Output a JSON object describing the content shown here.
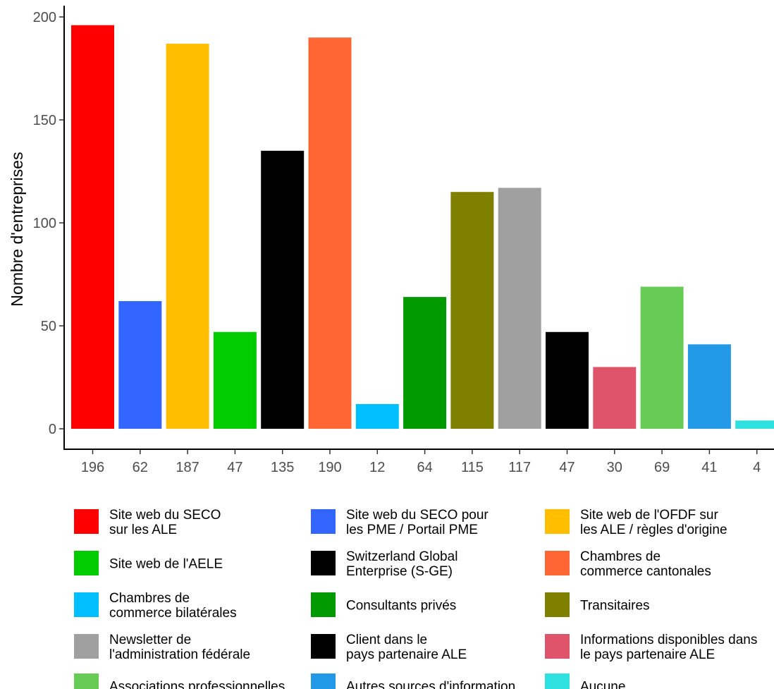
{
  "chart_data": {
    "type": "bar",
    "title": "",
    "xlabel": "",
    "ylabel": "Nombre d'entreprises",
    "ylim": [
      0,
      200
    ],
    "yticks": [
      0,
      50,
      100,
      150,
      200
    ],
    "grid": false,
    "legend_position": "bottom",
    "legend_columns": 3,
    "categories": [
      "196",
      "62",
      "187",
      "47",
      "135",
      "190",
      "12",
      "64",
      "115",
      "117",
      "47",
      "30",
      "69",
      "41",
      "4"
    ],
    "values": [
      196,
      62,
      187,
      47,
      135,
      190,
      12,
      64,
      115,
      117,
      47,
      30,
      69,
      41,
      4
    ],
    "series": [
      {
        "name": "Site web du SECO\nsur les ALE",
        "value": 196,
        "color": "#ff0000"
      },
      {
        "name": "Site web du SECO pour\nles PME / Portail PME",
        "value": 62,
        "color": "#3366ff"
      },
      {
        "name": "Site web de l'OFDF sur\nles ALE / règles d'origine",
        "value": 187,
        "color": "#ffbf00"
      },
      {
        "name": "Site web de l'AELE",
        "value": 47,
        "color": "#00cc00"
      },
      {
        "name": "Switzerland Global\nEnterprise (S-GE)",
        "value": 135,
        "color": "#000000"
      },
      {
        "name": "Chambres de\ncommerce cantonales",
        "value": 190,
        "color": "#ff6633"
      },
      {
        "name": "Chambres de\ncommerce bilatérales",
        "value": 12,
        "color": "#00bfff"
      },
      {
        "name": "Consultants privés",
        "value": 64,
        "color": "#009900"
      },
      {
        "name": "Transitaires",
        "value": 115,
        "color": "#808000"
      },
      {
        "name": "Newsletter de\nl'administration fédérale",
        "value": 117,
        "color": "#a0a0a0"
      },
      {
        "name": "Client dans le\npays partenaire ALE",
        "value": 47,
        "color": "#000000"
      },
      {
        "name": "Informations disponibles dans\nle pays partenaire ALE",
        "value": 30,
        "color": "#e0546b"
      },
      {
        "name": "Associations professionnelles",
        "value": 69,
        "color": "#66cc55"
      },
      {
        "name": "Autres sources d'information",
        "value": 41,
        "color": "#2299e6"
      },
      {
        "name": "Aucune",
        "value": 4,
        "color": "#2ee0e0"
      }
    ]
  }
}
